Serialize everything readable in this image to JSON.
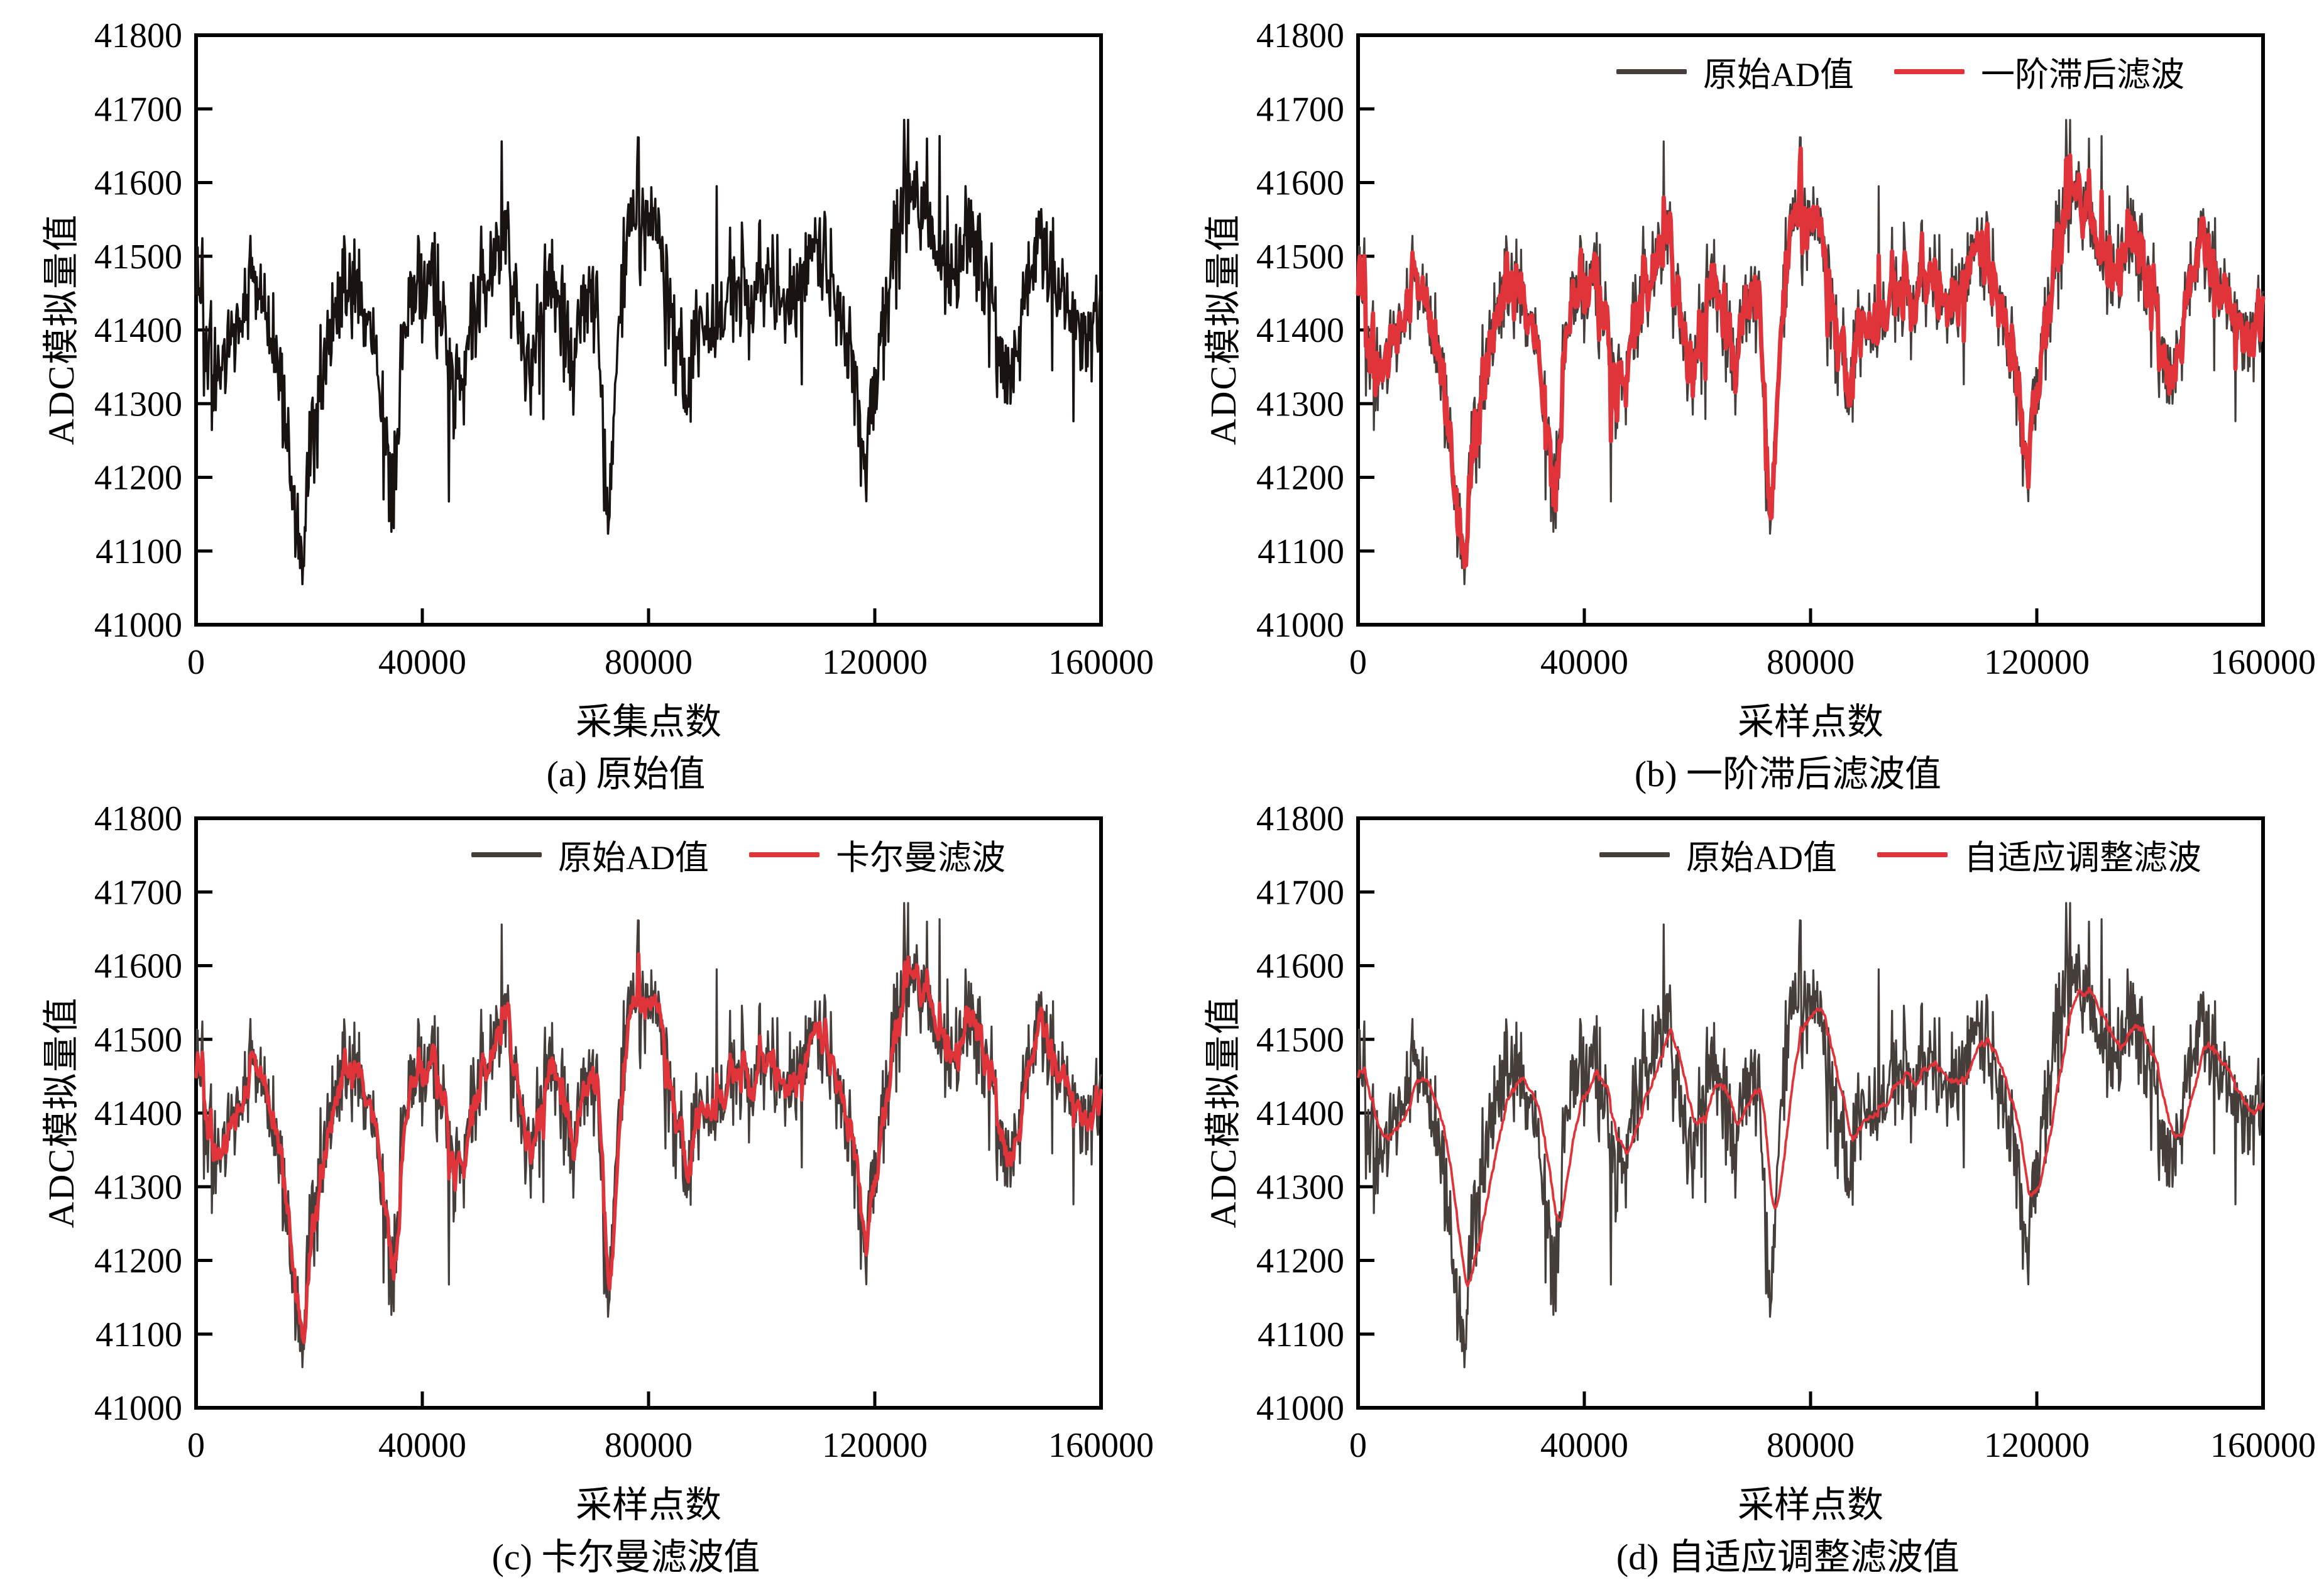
{
  "figure": {
    "background": "#ffffff",
    "axis_color": "#000000",
    "ylabel_shared": "ADC模拟量值",
    "charts": [
      {
        "key": "a",
        "ylabel": "ADC模拟量值",
        "xlabel": "采集点数",
        "caption": "(a) 原始值",
        "raw_color": "#181310",
        "raw_width": 3.6,
        "legend": null,
        "filter": null
      },
      {
        "key": "b",
        "ylabel": "ADC模拟量值",
        "xlabel": "采样点数",
        "caption": "(b) 一阶滞后滤波值",
        "raw_color": "#453e3a",
        "raw_width": 3.2,
        "legend": {
          "raw_label": "原始AD值",
          "filtered_label": "一阶滞后滤波"
        },
        "filter": {
          "alpha": 0.55,
          "color": "#e0343a",
          "width": 7
        }
      },
      {
        "key": "c",
        "ylabel": "ADC模拟量值",
        "xlabel": "采样点数",
        "caption": "(c) 卡尔曼滤波值",
        "raw_color": "#453e3a",
        "raw_width": 3.2,
        "legend": {
          "raw_label": "原始AD值",
          "filtered_label": "卡尔曼滤波"
        },
        "filter": {
          "alpha": 0.3,
          "color": "#e0343a",
          "width": 5.5
        }
      },
      {
        "key": "d",
        "ylabel": "ADC模拟量值",
        "xlabel": "采样点数",
        "caption": "(d) 自适应调整滤波值",
        "raw_color": "#453e3a",
        "raw_width": 3.2,
        "legend": {
          "raw_label": "原始AD值",
          "filtered_label": "自适应调整滤波"
        },
        "filter": {
          "alpha": 0.07,
          "color": "#e0343a",
          "width": 3.8
        }
      }
    ]
  },
  "chart_data": {
    "type": "line",
    "title": "",
    "xlabel_panel_a": "采集点数",
    "xlabel_panels_bcd": "采样点数",
    "ylabel": "ADC模拟量值",
    "xlim": [
      0,
      160000
    ],
    "ylim": [
      41000,
      41800
    ],
    "xticks": [
      0,
      40000,
      80000,
      120000,
      160000
    ],
    "yticks": [
      41000,
      41100,
      41200,
      41300,
      41400,
      41500,
      41600,
      41700,
      41800
    ],
    "grid": false,
    "legend_position": "top-center-inside",
    "panels": [
      {
        "caption": "(a) 原始值",
        "series": [
          "原始AD值"
        ]
      },
      {
        "caption": "(b) 一阶滞后滤波值",
        "series": [
          "原始AD值",
          "一阶滞后滤波"
        ]
      },
      {
        "caption": "(c) 卡尔曼滤波值",
        "series": [
          "原始AD值",
          "卡尔曼滤波"
        ]
      },
      {
        "caption": "(d) 自适应调整滤波值",
        "series": [
          "原始AD值",
          "自适应调整滤波"
        ]
      }
    ],
    "raw_signal": {
      "description": "noisy ADC raw trace shared by all four panels; trend keypoints [sample_index, adc_value] with ~±70 count noise band, extremes 41060–41685",
      "n_points": 1150,
      "noise_sigma": 60,
      "spike_probability": 0.025,
      "value_min": 41055,
      "value_max": 41685,
      "trend_keypoints": [
        [
          0,
          41490
        ],
        [
          2000,
          41390
        ],
        [
          4000,
          41350
        ],
        [
          6000,
          41370
        ],
        [
          8000,
          41430
        ],
        [
          9800,
          41475
        ],
        [
          11500,
          41440
        ],
        [
          13500,
          41370
        ],
        [
          15500,
          41290
        ],
        [
          17000,
          41200
        ],
        [
          18300,
          41100
        ],
        [
          19200,
          41150
        ],
        [
          20500,
          41250
        ],
        [
          22500,
          41350
        ],
        [
          24500,
          41420
        ],
        [
          26500,
          41465
        ],
        [
          28500,
          41465
        ],
        [
          30000,
          41420
        ],
        [
          31500,
          41360
        ],
        [
          33000,
          41300
        ],
        [
          34600,
          41160
        ],
        [
          35500,
          41220
        ],
        [
          36500,
          41360
        ],
        [
          37800,
          41450
        ],
        [
          39000,
          41460
        ],
        [
          40500,
          41440
        ],
        [
          42000,
          41465
        ],
        [
          43500,
          41420
        ],
        [
          45000,
          41350
        ],
        [
          46500,
          41320
        ],
        [
          48000,
          41370
        ],
        [
          50000,
          41430
        ],
        [
          52000,
          41480
        ],
        [
          53500,
          41515
        ],
        [
          55000,
          41505
        ],
        [
          56500,
          41440
        ],
        [
          58000,
          41370
        ],
        [
          59500,
          41330
        ],
        [
          61000,
          41420
        ],
        [
          62500,
          41465
        ],
        [
          64000,
          41430
        ],
        [
          65500,
          41385
        ],
        [
          66800,
          41335
        ],
        [
          68000,
          41420
        ],
        [
          69500,
          41465
        ],
        [
          70800,
          41410
        ],
        [
          72000,
          41280
        ],
        [
          73000,
          41130
        ],
        [
          74000,
          41300
        ],
        [
          75200,
          41460
        ],
        [
          76500,
          41530
        ],
        [
          78000,
          41555
        ],
        [
          80000,
          41560
        ],
        [
          82000,
          41520
        ],
        [
          83500,
          41450
        ],
        [
          85000,
          41380
        ],
        [
          86500,
          41300
        ],
        [
          88000,
          41380
        ],
        [
          89500,
          41425
        ],
        [
          91500,
          41415
        ],
        [
          93500,
          41425
        ],
        [
          95500,
          41445
        ],
        [
          97000,
          41475
        ],
        [
          98500,
          41445
        ],
        [
          100000,
          41470
        ],
        [
          101200,
          41485
        ],
        [
          102800,
          41445
        ],
        [
          104500,
          41430
        ],
        [
          106500,
          41450
        ],
        [
          108500,
          41490
        ],
        [
          110000,
          41525
        ],
        [
          111500,
          41490
        ],
        [
          113000,
          41445
        ],
        [
          114800,
          41405
        ],
        [
          116300,
          41330
        ],
        [
          117800,
          41240
        ],
        [
          119000,
          41260
        ],
        [
          120500,
          41340
        ],
        [
          122000,
          41440
        ],
        [
          123800,
          41520
        ],
        [
          125500,
          41570
        ],
        [
          127000,
          41585
        ],
        [
          128500,
          41555
        ],
        [
          130500,
          41515
        ],
        [
          132500,
          41485
        ],
        [
          134500,
          41480
        ],
        [
          136000,
          41520
        ],
        [
          137500,
          41535
        ],
        [
          139000,
          41480
        ],
        [
          140800,
          41425
        ],
        [
          142500,
          41375
        ],
        [
          144200,
          41345
        ],
        [
          145800,
          41400
        ],
        [
          147500,
          41480
        ],
        [
          149000,
          41535
        ],
        [
          150500,
          41505
        ],
        [
          152500,
          41455
        ],
        [
          154500,
          41440
        ],
        [
          156500,
          41405
        ],
        [
          158000,
          41370
        ],
        [
          159200,
          41400
        ],
        [
          160000,
          41450
        ]
      ]
    },
    "filters": [
      {
        "panel": "b",
        "name": "一阶滞后滤波",
        "type": "first-order-lag",
        "alpha": 0.55
      },
      {
        "panel": "c",
        "name": "卡尔曼滤波",
        "type": "kalman",
        "alpha_equivalent": 0.3
      },
      {
        "panel": "d",
        "name": "自适应调整滤波",
        "type": "adaptive",
        "alpha_equivalent": 0.07
      }
    ]
  }
}
